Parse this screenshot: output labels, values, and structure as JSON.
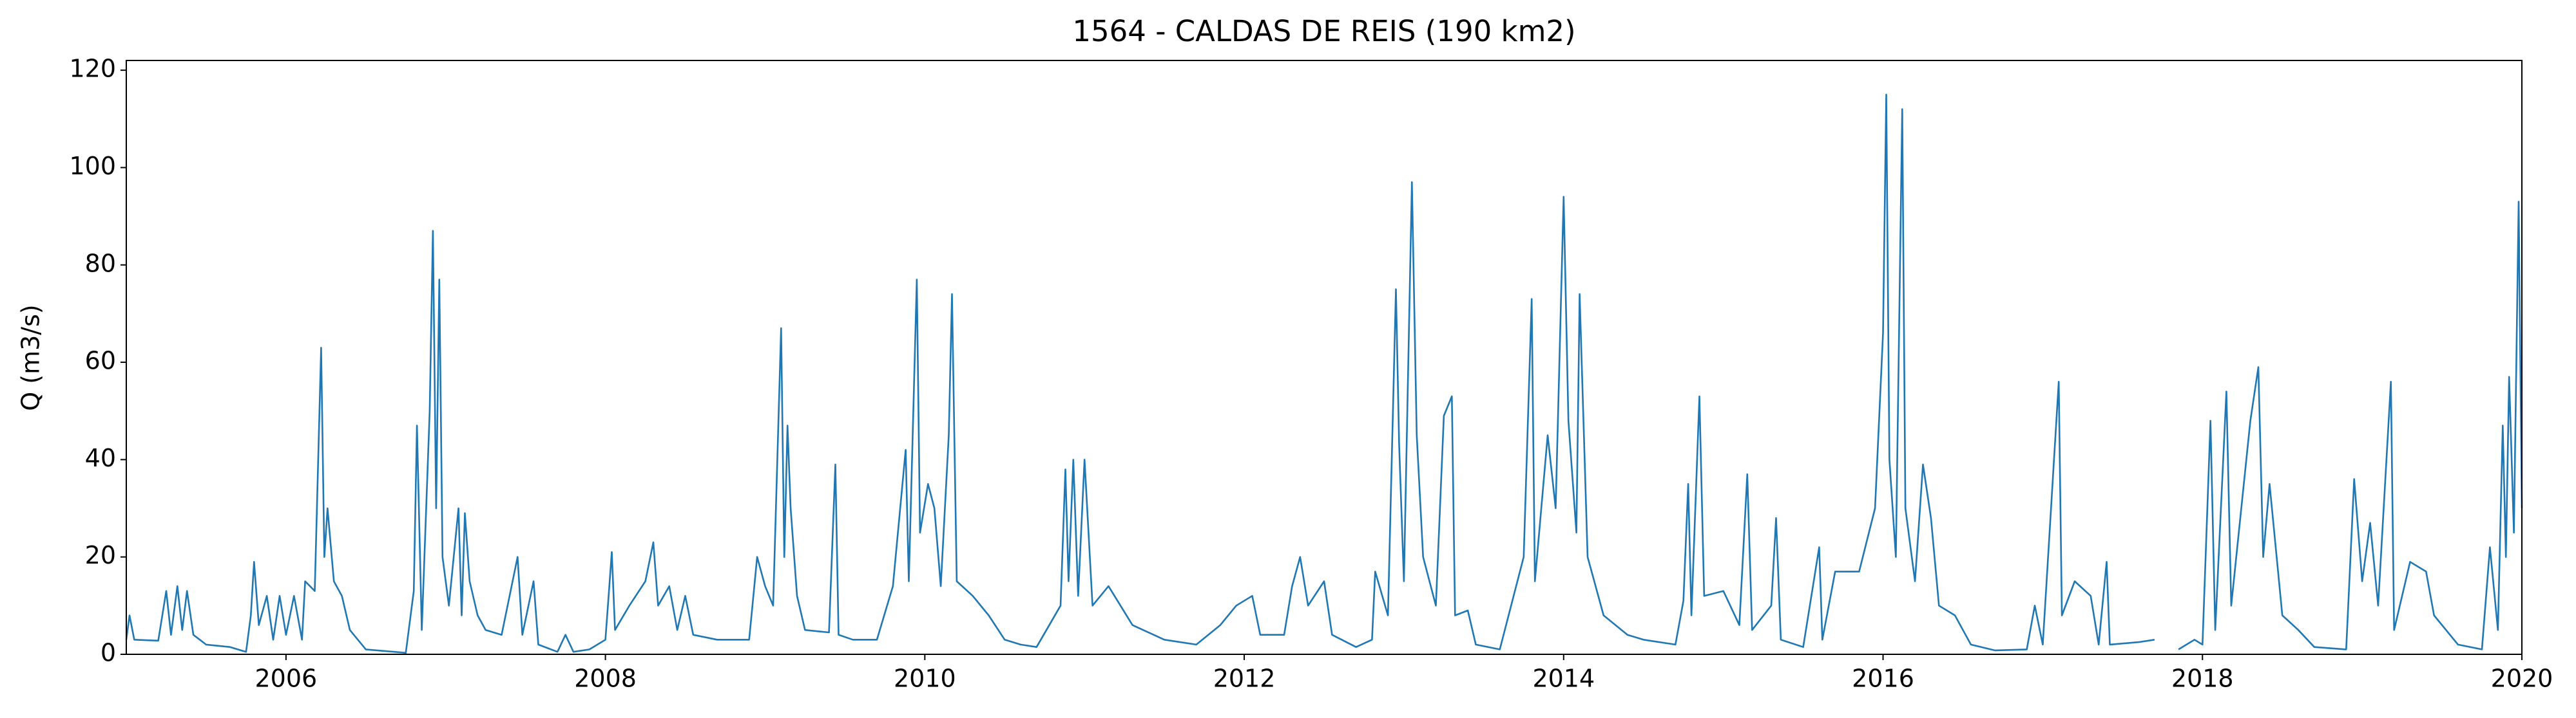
{
  "chart_data": {
    "type": "line",
    "title": "1564 - CALDAS DE REIS (190 km2)",
    "y_label": "Q (m3/s)",
    "xlim": [
      2005,
      2020
    ],
    "xticks": [
      2006,
      2008,
      2010,
      2012,
      2014,
      2016,
      2018,
      2020
    ],
    "ylim": [
      0,
      122
    ],
    "yticks": [
      0,
      20,
      40,
      60,
      80,
      100,
      120
    ],
    "grid": false,
    "series": [
      {
        "name": "Q",
        "color": "#1f77b4",
        "x": [
          2005.0,
          2005.02,
          2005.05,
          2005.2,
          2005.25,
          2005.28,
          2005.32,
          2005.35,
          2005.38,
          2005.42,
          2005.5,
          2005.65,
          2005.75,
          2005.78,
          2005.8,
          2005.83,
          2005.88,
          2005.92,
          2005.96,
          2006.0,
          2006.05,
          2006.1,
          2006.12,
          2006.18,
          2006.22,
          2006.24,
          2006.26,
          2006.3,
          2006.35,
          2006.4,
          2006.45,
          2006.5,
          2006.75,
          2006.8,
          2006.82,
          2006.85,
          2006.9,
          2006.92,
          2006.94,
          2006.96,
          2006.98,
          2007.02,
          2007.08,
          2007.1,
          2007.12,
          2007.15,
          2007.2,
          2007.25,
          2007.35,
          2007.45,
          2007.48,
          2007.55,
          2007.58,
          2007.7,
          2007.75,
          2007.8,
          2007.9,
          2008.0,
          2008.02,
          2008.04,
          2008.06,
          2008.15,
          2008.25,
          2008.3,
          2008.33,
          2008.4,
          2008.45,
          2008.5,
          2008.55,
          2008.7,
          2008.9,
          2008.95,
          2009.0,
          2009.05,
          2009.1,
          2009.12,
          2009.14,
          2009.16,
          2009.2,
          2009.25,
          2009.4,
          2009.44,
          2009.46,
          2009.55,
          2009.7,
          2009.8,
          2009.88,
          2009.9,
          2009.95,
          2009.97,
          2010.02,
          2010.06,
          2010.1,
          2010.15,
          2010.17,
          2010.2,
          2010.3,
          2010.4,
          2010.5,
          2010.6,
          2010.7,
          2010.85,
          2010.88,
          2010.9,
          2010.93,
          2010.96,
          2011.0,
          2011.05,
          2011.15,
          2011.3,
          2011.5,
          2011.7,
          2011.85,
          2011.95,
          2012.05,
          2012.1,
          2012.25,
          2012.3,
          2012.35,
          2012.4,
          2012.5,
          2012.55,
          2012.7,
          2012.8,
          2012.82,
          2012.9,
          2012.95,
          2012.97,
          2013.0,
          2013.05,
          2013.08,
          2013.12,
          2013.2,
          2013.25,
          2013.3,
          2013.32,
          2013.4,
          2013.45,
          2013.6,
          2013.75,
          2013.8,
          2013.82,
          2013.9,
          2013.95,
          2014.0,
          2014.03,
          2014.08,
          2014.1,
          2014.15,
          2014.25,
          2014.4,
          2014.5,
          2014.7,
          2014.75,
          2014.78,
          2014.8,
          2014.85,
          2014.88,
          2015.0,
          2015.1,
          2015.15,
          2015.18,
          2015.3,
          2015.33,
          2015.36,
          2015.5,
          2015.6,
          2015.62,
          2015.7,
          2015.85,
          2015.95,
          2016.0,
          2016.02,
          2016.04,
          2016.08,
          2016.12,
          2016.14,
          2016.2,
          2016.25,
          2016.3,
          2016.35,
          2016.45,
          2016.55,
          2016.7,
          2016.9,
          2016.95,
          2017.0,
          2017.1,
          2017.12,
          2017.2,
          2017.3,
          2017.35,
          2017.4,
          2017.42,
          2017.6,
          2017.7,
          2017.75,
          2017.85,
          2017.95,
          2018.0,
          2018.05,
          2018.08,
          2018.15,
          2018.18,
          2018.3,
          2018.35,
          2018.38,
          2018.42,
          2018.5,
          2018.6,
          2018.7,
          2018.9,
          2018.95,
          2019.0,
          2019.05,
          2019.1,
          2019.18,
          2019.2,
          2019.3,
          2019.4,
          2019.45,
          2019.6,
          2019.75,
          2019.8,
          2019.85,
          2019.88,
          2019.9,
          2019.92,
          2019.95,
          2019.98,
          2020.0
        ],
        "values": [
          3,
          8,
          3,
          2.8,
          13,
          4,
          14,
          5,
          13,
          4,
          2,
          1.5,
          0.5,
          8,
          19,
          6,
          12,
          3,
          12,
          4,
          12,
          3,
          15,
          13,
          63,
          20,
          30,
          15,
          12,
          5,
          3,
          1,
          0.3,
          13,
          47,
          5,
          50,
          87,
          30,
          77,
          20,
          10,
          30,
          8,
          29,
          15,
          8,
          5,
          4,
          20,
          4,
          15,
          2,
          0.5,
          4,
          0.5,
          1,
          3,
          12,
          21,
          5,
          10,
          15,
          23,
          10,
          14,
          5,
          12,
          4,
          3,
          3,
          20,
          14,
          10,
          67,
          20,
          47,
          30,
          12,
          5,
          4.5,
          39,
          4,
          3,
          3,
          14,
          42,
          15,
          77,
          25,
          35,
          30,
          14,
          45,
          74,
          15,
          12,
          8,
          3,
          2,
          1.5,
          10,
          38,
          15,
          40,
          12,
          40,
          10,
          14,
          6,
          3,
          2,
          6,
          10,
          12,
          4,
          4,
          14,
          20,
          10,
          15,
          4,
          1.5,
          3,
          17,
          8,
          75,
          43,
          15,
          97,
          45,
          20,
          10,
          49,
          53,
          8,
          9,
          2,
          1,
          20,
          73,
          15,
          45,
          30,
          94,
          48,
          25,
          74,
          20,
          8,
          4,
          3,
          2,
          11,
          35,
          8,
          53,
          12,
          13,
          6,
          37,
          5,
          10,
          28,
          3,
          1.5,
          22,
          3,
          17,
          17,
          30,
          66,
          115,
          40,
          20,
          112,
          30,
          15,
          39,
          28,
          10,
          8,
          2,
          0.8,
          1,
          10,
          2,
          56,
          8,
          15,
          12,
          2,
          19,
          2,
          2.5,
          3,
          null,
          1,
          3,
          2,
          48,
          5,
          54,
          10,
          48,
          59,
          20,
          35,
          8,
          5,
          1.5,
          1,
          36,
          15,
          27,
          10,
          56,
          5,
          19,
          17,
          8,
          2,
          1,
          22,
          5,
          47,
          20,
          57,
          25,
          93,
          30
        ]
      }
    ]
  }
}
